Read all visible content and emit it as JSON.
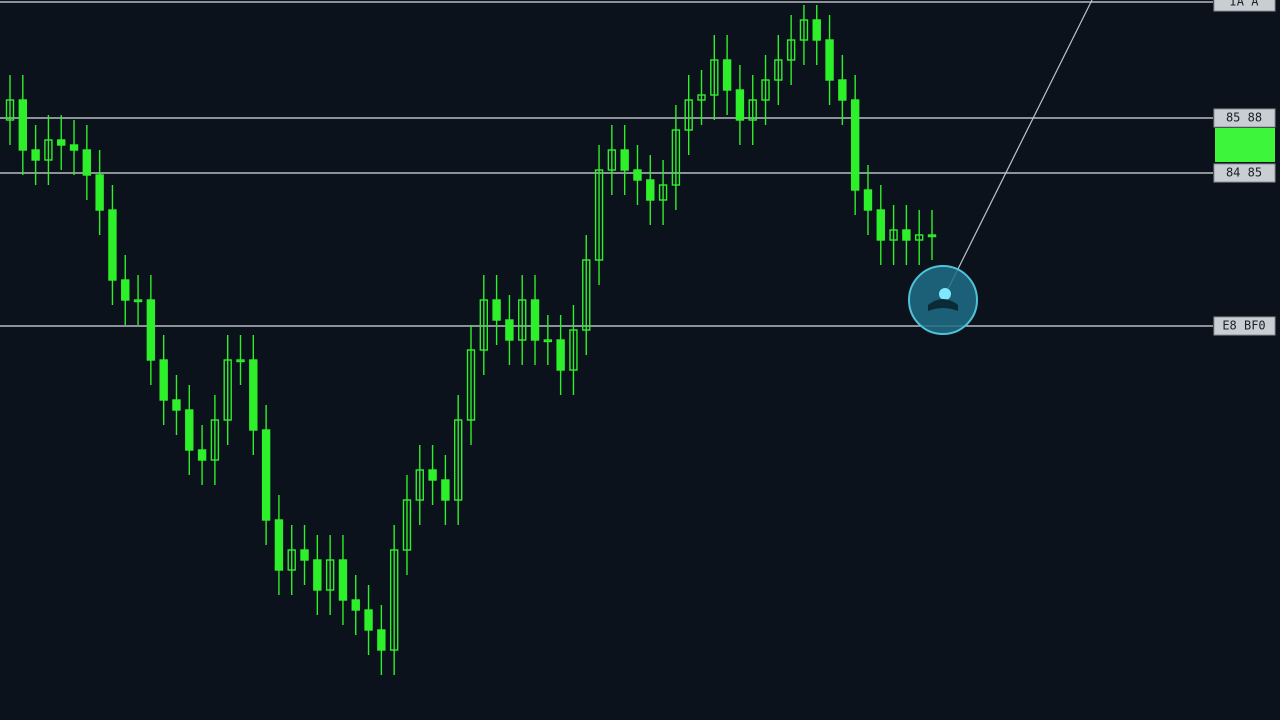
{
  "chart_data": {
    "type": "candlestick",
    "color": "#2ef02a",
    "ylim": [
      0,
      720
    ],
    "levels": [
      {
        "value": 718,
        "label": "IA A"
      },
      {
        "value": 602,
        "label": "85 88"
      },
      {
        "value": 547,
        "label": "84 85"
      },
      {
        "value": 394,
        "label": "E8 BF0"
      }
    ],
    "open": [
      600,
      620,
      570,
      560,
      580,
      575,
      570,
      545,
      510,
      440,
      420,
      420,
      360,
      320,
      310,
      270,
      260,
      300,
      360,
      360,
      290,
      200,
      150,
      170,
      160,
      130,
      160,
      120,
      110,
      90,
      70,
      170,
      220,
      250,
      240,
      220,
      300,
      370,
      420,
      400,
      380,
      420,
      380,
      380,
      350,
      390,
      460,
      550,
      570,
      550,
      540,
      520,
      535,
      590,
      620,
      625,
      660,
      630,
      600,
      620,
      640,
      660,
      680,
      700,
      680,
      640,
      620,
      530,
      510,
      480,
      490,
      480,
      485
    ],
    "high": [
      645,
      645,
      595,
      605,
      605,
      600,
      595,
      570,
      535,
      465,
      445,
      445,
      385,
      345,
      335,
      295,
      325,
      385,
      385,
      385,
      315,
      225,
      195,
      195,
      185,
      185,
      185,
      145,
      135,
      115,
      195,
      245,
      275,
      275,
      265,
      325,
      395,
      445,
      445,
      425,
      445,
      445,
      405,
      405,
      415,
      485,
      575,
      595,
      595,
      575,
      565,
      560,
      615,
      645,
      650,
      685,
      685,
      655,
      645,
      665,
      685,
      705,
      715,
      715,
      705,
      665,
      645,
      555,
      535,
      515,
      515,
      510,
      510
    ],
    "low": [
      575,
      545,
      535,
      535,
      550,
      545,
      520,
      485,
      415,
      395,
      395,
      335,
      295,
      285,
      245,
      235,
      235,
      275,
      335,
      265,
      175,
      125,
      125,
      135,
      105,
      105,
      95,
      85,
      65,
      45,
      45,
      145,
      195,
      215,
      195,
      195,
      275,
      345,
      375,
      355,
      355,
      355,
      355,
      325,
      325,
      365,
      435,
      525,
      525,
      515,
      495,
      495,
      510,
      565,
      595,
      600,
      605,
      575,
      575,
      595,
      615,
      635,
      655,
      655,
      615,
      595,
      505,
      485,
      455,
      455,
      455,
      455,
      460
    ],
    "close": [
      620,
      570,
      560,
      580,
      575,
      570,
      545,
      510,
      440,
      420,
      420,
      360,
      320,
      310,
      270,
      260,
      300,
      360,
      360,
      290,
      200,
      150,
      170,
      160,
      130,
      160,
      120,
      110,
      90,
      70,
      170,
      220,
      250,
      240,
      220,
      300,
      370,
      420,
      400,
      380,
      420,
      380,
      380,
      350,
      390,
      460,
      550,
      570,
      550,
      540,
      520,
      535,
      590,
      620,
      625,
      660,
      630,
      600,
      620,
      640,
      660,
      680,
      700,
      680,
      640,
      620,
      530,
      510,
      480,
      490,
      480,
      485,
      485
    ]
  }
}
